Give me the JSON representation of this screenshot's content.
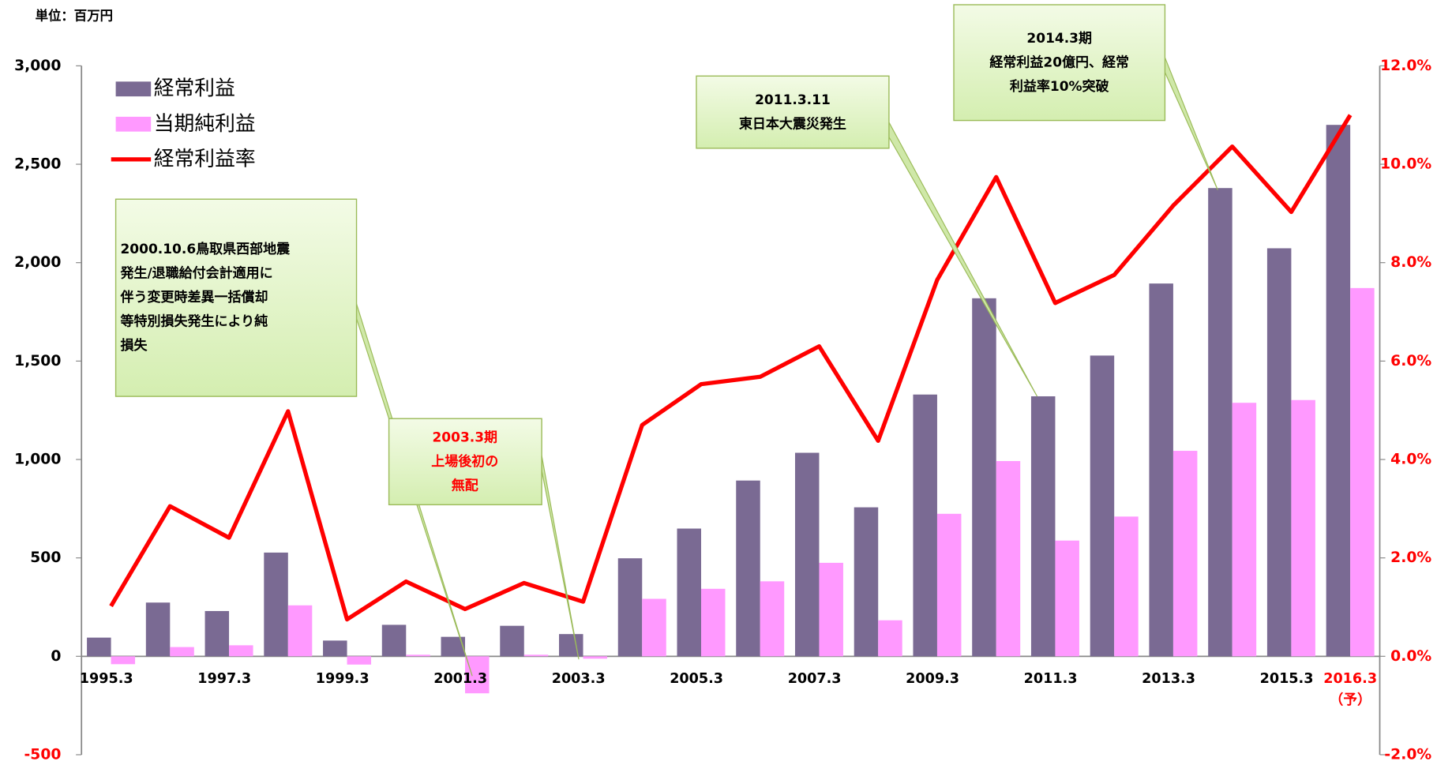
{
  "chart_data": {
    "type": "bar_line",
    "unit_label": "単位：百万円",
    "categories": [
      "1995.3",
      null,
      "1997.3",
      null,
      "1999.3",
      null,
      "2001.3",
      null,
      "2003.3",
      null,
      "2005.3",
      null,
      "2007.3",
      null,
      "2009.3",
      null,
      "2011.3",
      null,
      "2013.3",
      null,
      "2015.3",
      "2016.3"
    ],
    "x_note": "（予）",
    "series": [
      {
        "name": "経常利益",
        "type": "bar",
        "color": "#7a6a93",
        "values": [
          95,
          273,
          230,
          527,
          80,
          160,
          99,
          155,
          113,
          498,
          649,
          893,
          1034,
          757,
          1330,
          1819,
          1321,
          1528,
          1894,
          2379,
          2073,
          2700
        ]
      },
      {
        "name": "当期純利益",
        "type": "bar",
        "color": "#ff99ff",
        "values": [
          -40,
          47,
          56,
          259,
          -42,
          8,
          -188,
          8,
          -12,
          292,
          343,
          381,
          475,
          183,
          724,
          992,
          588,
          710,
          1044,
          1288,
          1302,
          1871
        ]
      },
      {
        "name": "経常利益率",
        "type": "line",
        "axis": "y2",
        "color": "#ff0000",
        "values": [
          1.02,
          3.05,
          2.41,
          4.98,
          0.75,
          1.52,
          0.96,
          1.49,
          1.11,
          4.7,
          5.53,
          5.68,
          6.3,
          4.38,
          7.65,
          9.74,
          7.18,
          7.75,
          9.16,
          10.36,
          9.03,
          11.0
        ]
      }
    ],
    "ylim": [
      -500,
      3000
    ],
    "yticks": [
      -500,
      0,
      {
        "value": 500,
        "label": "500"
      },
      {
        "value": 1000,
        "label": "1,000"
      },
      {
        "value": 1500,
        "label": "1,500"
      },
      {
        "value": 2000,
        "label": "2,000"
      },
      {
        "value": 2500,
        "label": "2,500"
      },
      {
        "value": 3000,
        "label": "3,000"
      }
    ],
    "y2lim": [
      -2,
      12
    ],
    "y2ticks": [
      {
        "value": -2,
        "label": "-2.0%"
      },
      {
        "value": 0,
        "label": "0.0%"
      },
      {
        "value": 2,
        "label": "2.0%"
      },
      {
        "value": 4,
        "label": "4.0%"
      },
      {
        "value": 6,
        "label": "6.0%"
      },
      {
        "value": 8,
        "label": "8.0%"
      },
      {
        "value": 10,
        "label": "10.0%"
      },
      {
        "value": 12,
        "label": "12.0%"
      }
    ],
    "legend": "upper left",
    "annotations": [
      {
        "lines": [
          "2000.10.6鳥取県西部地震",
          "発生/退職給付会計適用に",
          "伴う変更時差異一括償却",
          "等特別損失発生により純",
          "損失"
        ],
        "color": "#000000"
      },
      {
        "lines": [
          "2003.3期",
          "上場後初の",
          "無配"
        ],
        "color": "#ff0000"
      },
      {
        "lines": [
          "2011.3.11",
          "東日本大震災発生"
        ],
        "color": "#000000"
      },
      {
        "lines": [
          "2014.3期",
          "経常利益20億円、経常",
          "利益率10%突破"
        ],
        "color": "#000000"
      }
    ]
  }
}
